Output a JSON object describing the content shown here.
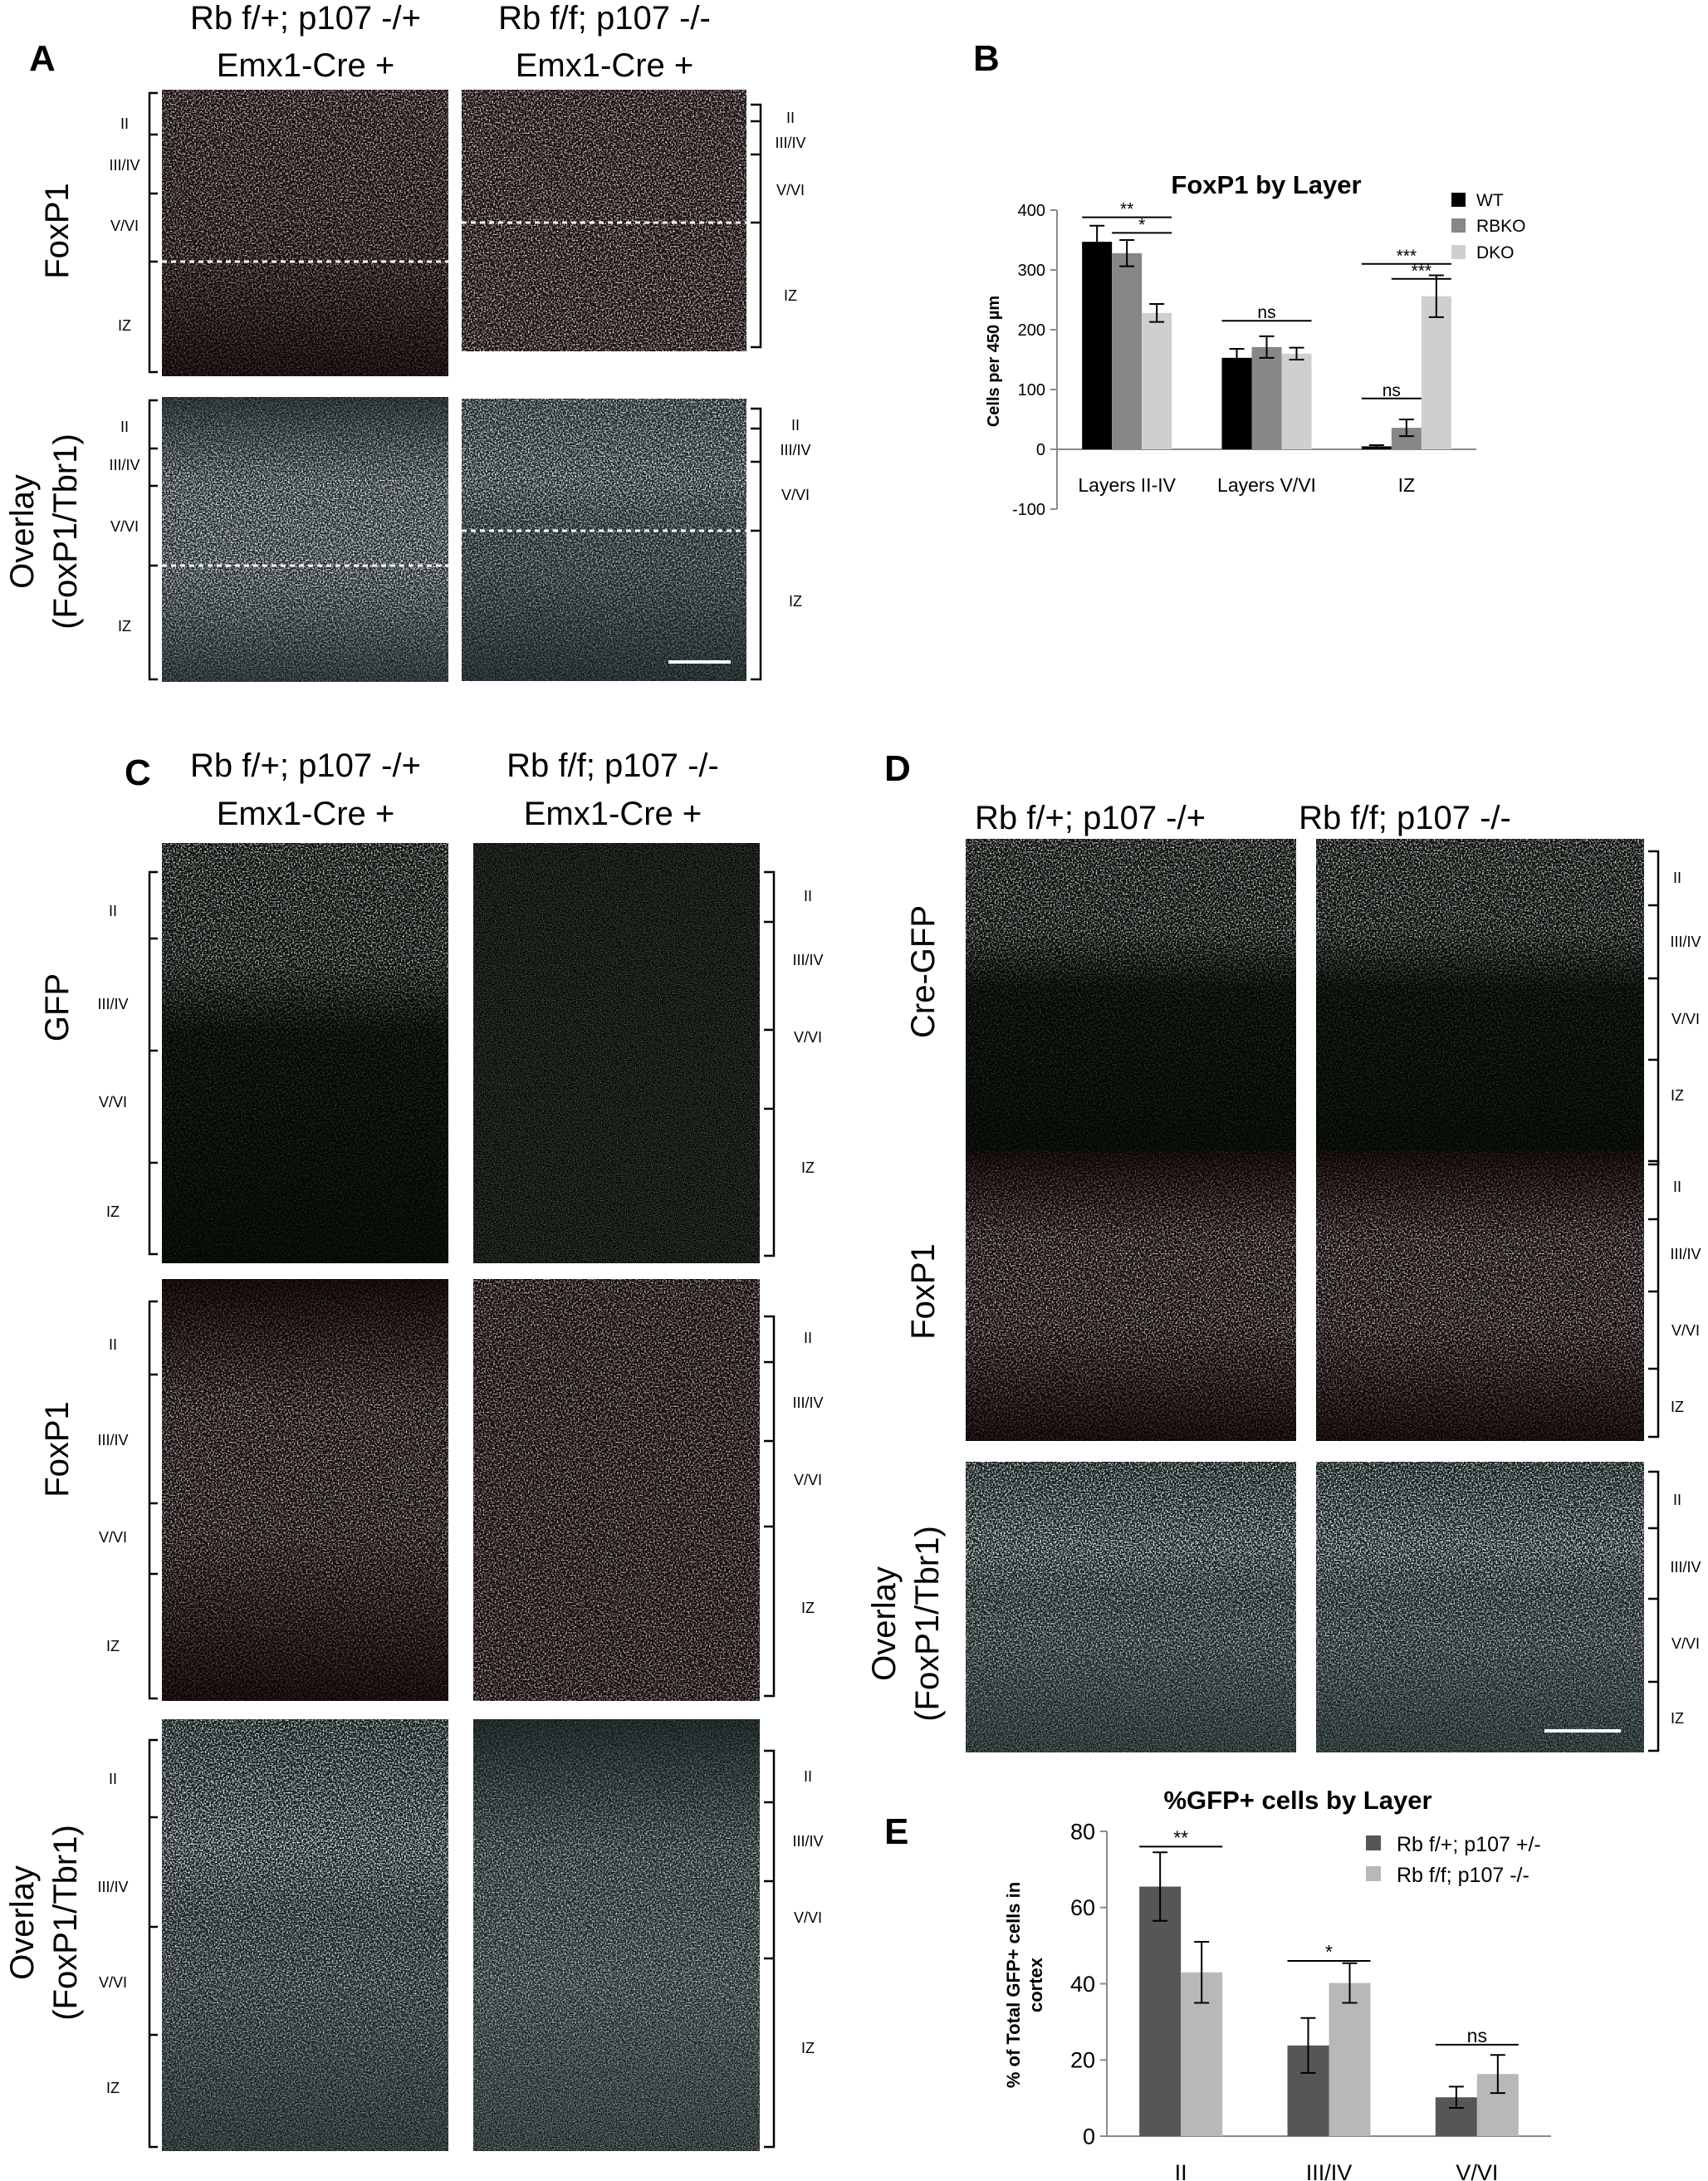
{
  "panels": {
    "A": {
      "letter": "A",
      "genotypes": [
        {
          "line1": "Rb f/+; p107 -/+",
          "line2": "Emx1-Cre +"
        },
        {
          "line1": "Rb f/f; p107 -/-",
          "line2": "Emx1-Cre +"
        }
      ],
      "rows": [
        {
          "label1": "FoxP1",
          "label2": "",
          "colors": [
            "#c01818"
          ]
        },
        {
          "label1": "Overlay",
          "label2": "(FoxP1/Tbr1)",
          "colors": [
            "#2fb2bb",
            "#c22a2a",
            "#33b52a"
          ]
        }
      ],
      "layers": [
        "II",
        "III/IV",
        "V/VI",
        "IZ"
      ]
    },
    "B": {
      "letter": "B"
    },
    "C": {
      "letter": "C",
      "genotypes": [
        {
          "line1": "Rb f/+; p107 -/+",
          "line2": "Emx1-Cre +"
        },
        {
          "line1": "Rb f/f; p107 -/-",
          "line2": "Emx1-Cre +"
        }
      ],
      "rows": [
        {
          "label1": "GFP",
          "label2": "",
          "colors": [
            "#22d022"
          ]
        },
        {
          "label1": "FoxP1",
          "label2": "",
          "colors": [
            "#b81818"
          ]
        },
        {
          "label1": "Overlay",
          "label2": "(FoxP1/Tbr1)",
          "colors": [
            "#2aa9b5",
            "#c42222",
            "#3fd82f"
          ]
        }
      ],
      "layers": [
        "II",
        "III/IV",
        "V/VI",
        "IZ"
      ]
    },
    "D": {
      "letter": "D",
      "genotypes": [
        {
          "line1": "Rb f/+; p107 -/+",
          "line2": ""
        },
        {
          "line1": "Rb f/f; p107 -/-",
          "line2": ""
        }
      ],
      "rows": [
        {
          "label1": "Cre-GFP",
          "label2": "",
          "colors": [
            "#29d12c"
          ]
        },
        {
          "label1": "FoxP1",
          "label2": "",
          "colors": [
            "#d81c1c"
          ]
        },
        {
          "label1": "Overlay",
          "label2": "(FoxP1/Tbr1)",
          "colors": [
            "#27c2cc",
            "#cc2323",
            "#7ad62a"
          ]
        }
      ],
      "layers": [
        "II",
        "III/IV",
        "V/VI",
        "IZ"
      ]
    },
    "E": {
      "letter": "E"
    }
  },
  "chart_data": [
    {
      "panel": "B",
      "type": "bar",
      "title": "FoxP1 by Layer",
      "xlabel": "",
      "ylabel": "Cells per 450 µm",
      "ylim": [
        -100,
        400
      ],
      "yticks": [
        -100,
        0,
        100,
        200,
        300,
        400
      ],
      "grid": false,
      "legend_position": "top-right",
      "categories": [
        "Layers II-IV",
        "Layers V/VI",
        "IZ"
      ],
      "series": [
        {
          "name": "WT",
          "color": "#000000",
          "values": [
            347,
            153,
            5
          ],
          "errors": [
            27,
            15,
            2
          ]
        },
        {
          "name": "RBKO",
          "color": "#878787",
          "values": [
            328,
            171,
            36
          ],
          "errors": [
            22,
            18,
            14
          ]
        },
        {
          "name": "DKO",
          "color": "#cfcfcf",
          "values": [
            228,
            160,
            256
          ],
          "errors": [
            15,
            10,
            35
          ]
        }
      ],
      "significance": [
        {
          "label": "**",
          "category": 0,
          "from": "WT",
          "to": "DKO",
          "y": 388
        },
        {
          "label": "*",
          "category": 0,
          "from": "RBKO",
          "to": "DKO",
          "y": 362
        },
        {
          "label": "ns",
          "category": 1,
          "from": "WT",
          "to": "DKO",
          "y": 215
        },
        {
          "label": "ns",
          "category": 2,
          "from": "WT",
          "to": "RBKO",
          "y": 85
        },
        {
          "label": "***",
          "category": 2,
          "from": "WT",
          "to": "DKO",
          "y": 310
        },
        {
          "label": "***",
          "category": 2,
          "from": "RBKO",
          "to": "DKO",
          "y": 285
        }
      ]
    },
    {
      "panel": "E",
      "type": "bar",
      "title": "%GFP+ cells by Layer",
      "xlabel": "",
      "ylabel": "% of Total GFP+ cells in cortex",
      "ylim": [
        0,
        80
      ],
      "yticks": [
        0,
        20,
        40,
        60,
        80
      ],
      "grid": false,
      "legend_position": "top-right",
      "categories": [
        "II",
        "III/IV",
        "V/VI"
      ],
      "series": [
        {
          "name": "Rb f/+; p107 +/-",
          "color": "#565656",
          "values": [
            65.5,
            23.8,
            10.2
          ],
          "errors": [
            9,
            7.2,
            2.8
          ]
        },
        {
          "name": "Rb f/f; p107 -/-",
          "color": "#b8b8b8",
          "values": [
            43,
            40.2,
            16.3
          ],
          "errors": [
            8,
            5.2,
            5
          ]
        }
      ],
      "significance": [
        {
          "label": "**",
          "category": 0,
          "y": 76
        },
        {
          "label": "*",
          "category": 1,
          "y": 46
        },
        {
          "label": "ns",
          "category": 2,
          "y": 24
        }
      ]
    }
  ]
}
